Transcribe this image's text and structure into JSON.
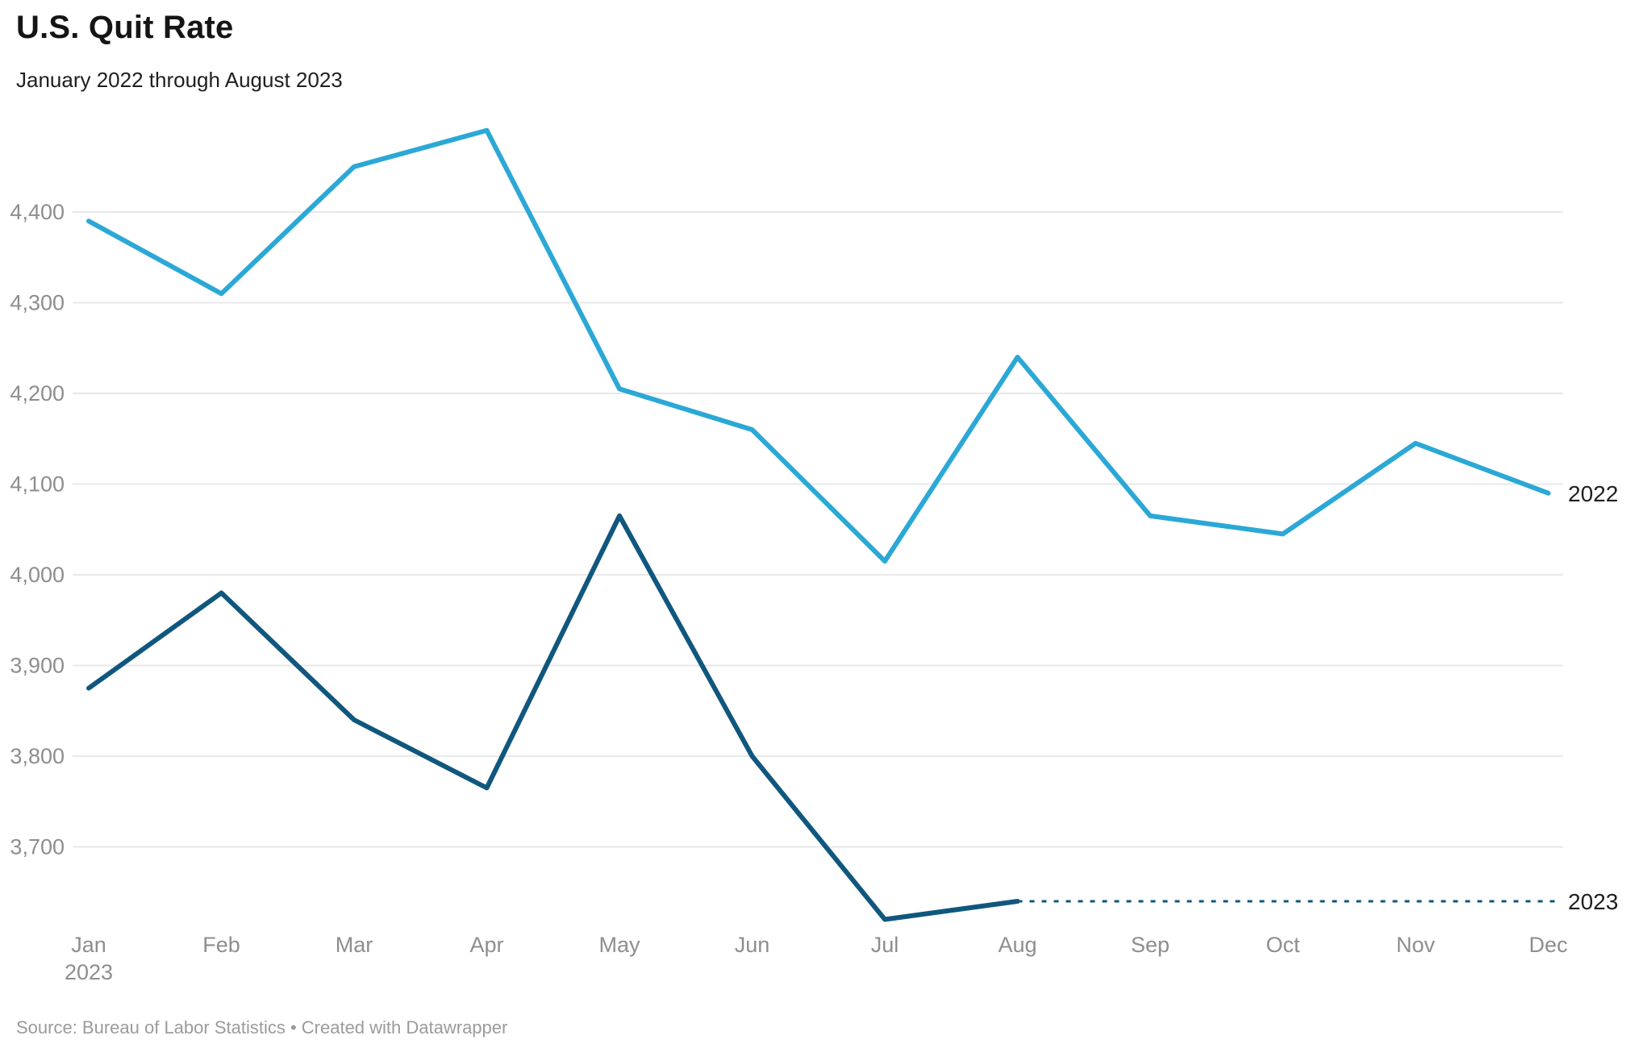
{
  "header": {
    "title": "U.S. Quit Rate",
    "subtitle": "January 2022 through August 2023"
  },
  "footer": {
    "text": "Source: Bureau of Labor Statistics • Created with Datawrapper"
  },
  "colors": {
    "series_2022": "#2BA8D6",
    "series_2023": "#10577E",
    "gridline": "#E8E8E8",
    "tick_label": "#8E8E8E",
    "end_label": "#1F1F1F",
    "title": "#151515",
    "source": "#9B9B9B"
  },
  "chart_data": {
    "type": "line",
    "title": "U.S. Quit Rate",
    "subtitle": "January 2022 through August 2023",
    "categories": [
      "Jan",
      "Feb",
      "Mar",
      "Apr",
      "May",
      "Jun",
      "Jul",
      "Aug",
      "Sep",
      "Oct",
      "Nov",
      "Dec"
    ],
    "x_axis_year_label": {
      "under_month": "Jan",
      "text": "2023"
    },
    "series": [
      {
        "name": "2022",
        "color": "#2BA8D6",
        "values": [
          4390,
          4310,
          4450,
          4490,
          4205,
          4160,
          4015,
          4240,
          4065,
          4045,
          4145,
          4090
        ]
      },
      {
        "name": "2023",
        "color": "#10577E",
        "values": [
          3875,
          3980,
          3840,
          3765,
          4065,
          3800,
          3620,
          3640
        ],
        "extension_note": "dotted line continues flat from Aug value to right-edge label"
      }
    ],
    "y_ticks": [
      3700,
      3800,
      3900,
      4000,
      4100,
      4200,
      4300,
      4400
    ],
    "ylim": [
      3600,
      4510
    ],
    "grid": "horizontal only, no axis lines",
    "legend_position": "line-end labels at right edge"
  }
}
